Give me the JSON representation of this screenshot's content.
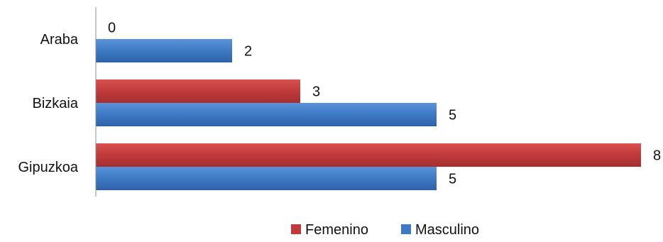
{
  "chart_data": {
    "type": "bar",
    "orientation": "horizontal",
    "categories": [
      "Araba",
      "Bizkaia",
      "Gipuzkoa"
    ],
    "series": [
      {
        "name": "Femenino",
        "values": [
          0,
          3,
          8
        ],
        "color": "#C0393B"
      },
      {
        "name": "Masculino",
        "values": [
          2,
          5,
          5
        ],
        "color": "#3D79C4"
      }
    ],
    "xlim": [
      0,
      8
    ],
    "title": "",
    "xlabel": "",
    "ylabel": "",
    "grid": false,
    "legend_position": "bottom",
    "data_labels": true
  }
}
